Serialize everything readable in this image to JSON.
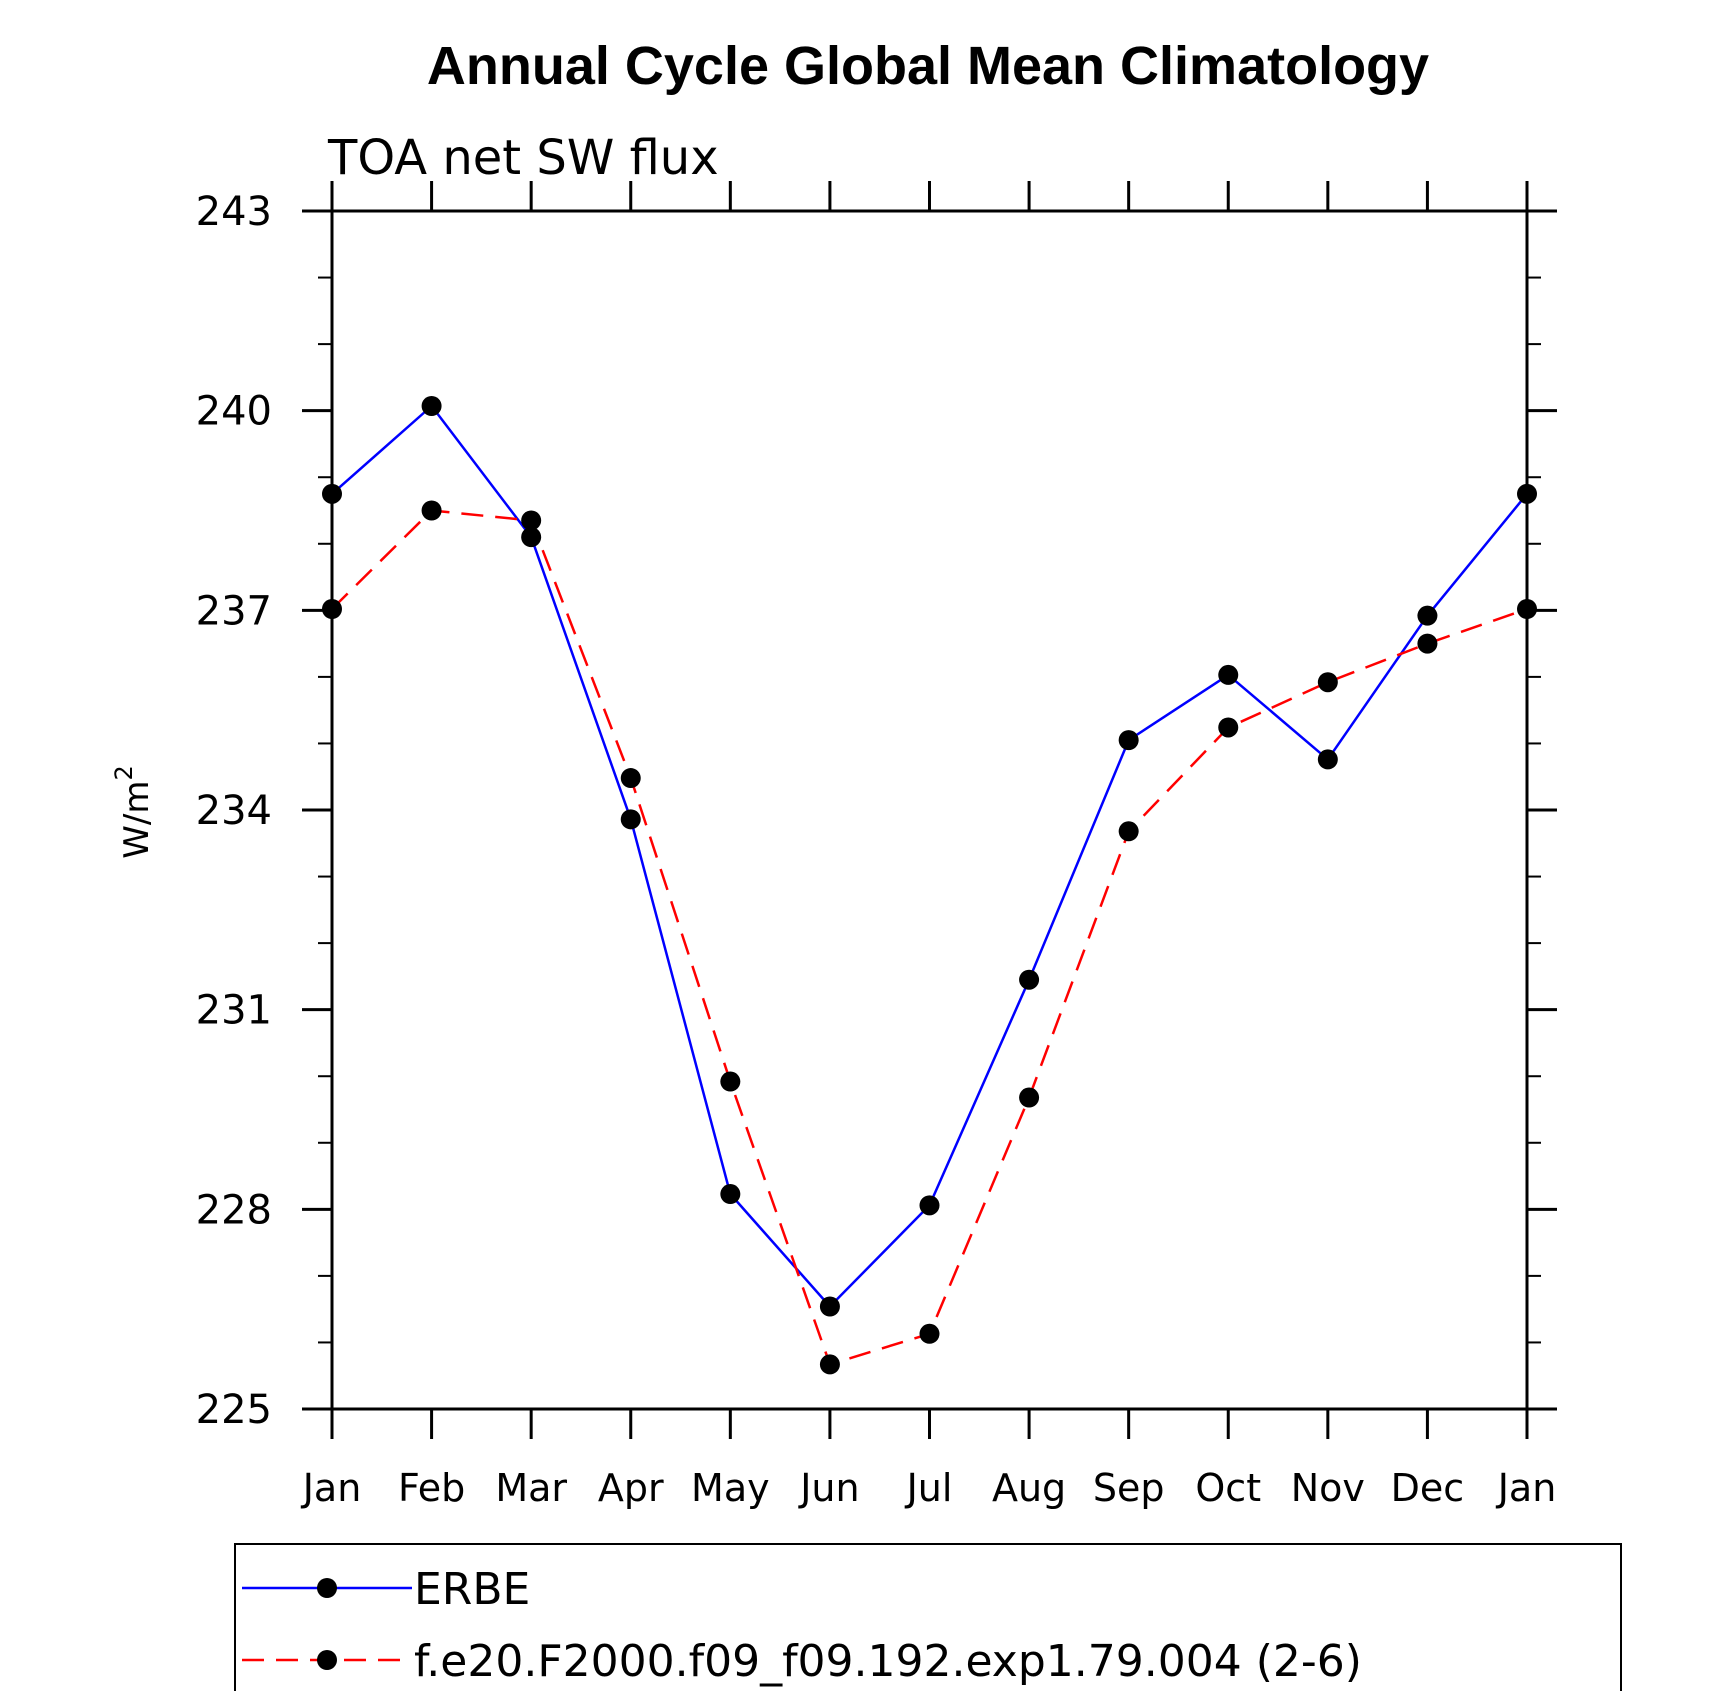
{
  "chart_data": {
    "type": "line",
    "title": "Annual Cycle Global Mean Climatology",
    "subtitle": "TOA net SW flux",
    "ylabel": "W/m",
    "ylabel_sup": "2",
    "xlabel": "",
    "categories": [
      "Jan",
      "Feb",
      "Mar",
      "Apr",
      "May",
      "Jun",
      "Jul",
      "Aug",
      "Sep",
      "Oct",
      "Nov",
      "Dec",
      "Jan"
    ],
    "ylim": [
      225,
      243
    ],
    "yticks": [
      "225",
      "228",
      "231",
      "234",
      "237",
      "240",
      "243"
    ],
    "series": [
      {
        "name": "ERBE",
        "color": "#0000ff",
        "dash": "solid",
        "values": [
          238.75,
          240.07,
          238.1,
          233.86,
          228.23,
          226.54,
          228.06,
          231.45,
          235.05,
          236.03,
          234.76,
          236.92,
          238.75
        ]
      },
      {
        "name": "f.e20.F2000.f09_f09.192.exp1.79.004 (2-6)",
        "color": "#ff0000",
        "dash": "dashed",
        "values": [
          237.02,
          238.5,
          238.35,
          234.48,
          229.92,
          225.67,
          226.13,
          229.68,
          233.68,
          235.24,
          235.92,
          236.5,
          237.02
        ]
      }
    ],
    "grid": false,
    "legend_position": "bottom"
  }
}
